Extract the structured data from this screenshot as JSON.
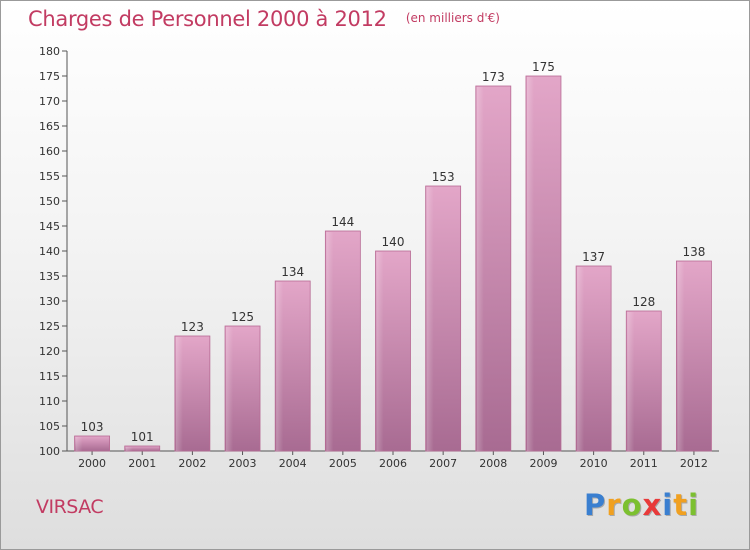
{
  "chart_data": {
    "type": "bar",
    "title": "Charges de Personnel 2000 à 2012",
    "unit_label": "(en milliers d'€)",
    "categories": [
      "2000",
      "2001",
      "2002",
      "2003",
      "2004",
      "2005",
      "2006",
      "2007",
      "2008",
      "2009",
      "2010",
      "2011",
      "2012"
    ],
    "values": [
      103,
      101,
      123,
      125,
      134,
      144,
      140,
      153,
      173,
      175,
      137,
      128,
      138
    ],
    "ylim": [
      100,
      180
    ],
    "yticks": [
      100,
      105,
      110,
      115,
      120,
      125,
      130,
      135,
      140,
      145,
      150,
      155,
      160,
      165,
      170,
      175,
      180
    ],
    "grid": false,
    "bar_color": "#c8739f"
  },
  "commune": "VIRSAC",
  "brand": {
    "letters": [
      "P",
      "r",
      "o",
      "x",
      "i",
      "t",
      "i"
    ],
    "colors": [
      "#3a7fd0",
      "#f0a020",
      "#7cc030",
      "#e83a3a",
      "#3a7fd0",
      "#f0a020",
      "#7cc030"
    ]
  }
}
